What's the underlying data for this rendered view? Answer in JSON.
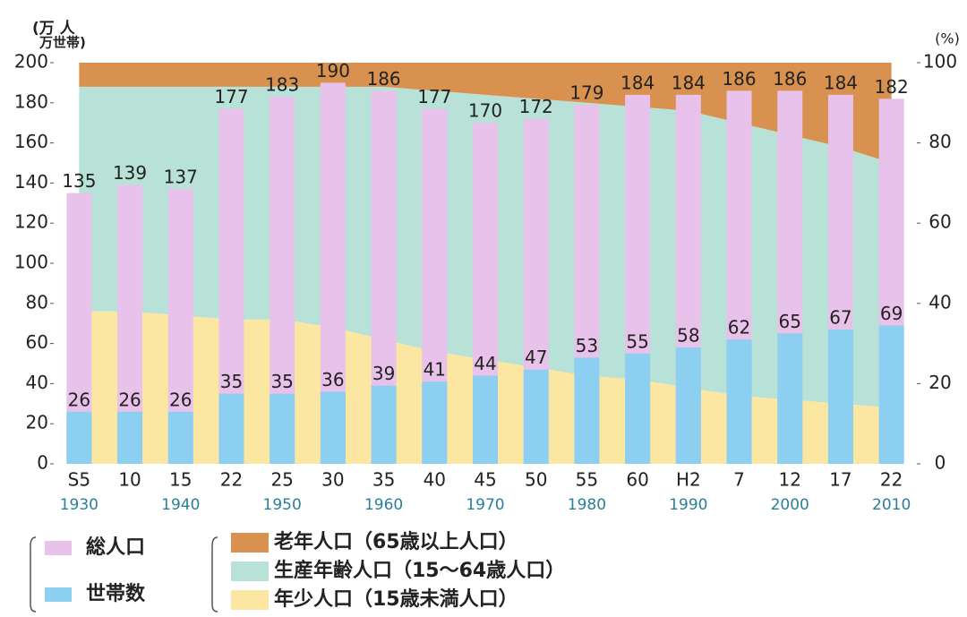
{
  "chart_data": {
    "type": "bar",
    "y_label_lines": [
      "(万 人",
      "万世帯)"
    ],
    "y2_label": "(%)",
    "categories": [
      "S5",
      "10",
      "15",
      "22",
      "25",
      "30",
      "35",
      "40",
      "45",
      "50",
      "55",
      "60",
      "H2",
      "7",
      "12",
      "17",
      "22"
    ],
    "years": [
      "1930",
      null,
      "1940",
      null,
      "1950",
      null,
      "1960",
      null,
      "1970",
      null,
      "1980",
      null,
      "1990",
      null,
      "2000",
      null,
      "2010"
    ],
    "series": [
      {
        "name": "総人口",
        "color": "#e8c2ea",
        "values": [
          135,
          139,
          137,
          177,
          183,
          190,
          186,
          177,
          170,
          172,
          179,
          184,
          184,
          186,
          186,
          184,
          182
        ]
      },
      {
        "name": "世帯数",
        "color": "#8ccff0",
        "values": [
          26,
          26,
          26,
          35,
          35,
          36,
          39,
          41,
          44,
          47,
          53,
          55,
          58,
          62,
          65,
          67,
          69
        ]
      }
    ],
    "area_series": [
      {
        "name": "年少人口（15歳未満人口）",
        "color": "#fbe7a1",
        "axis": "y2",
        "values": [
          38,
          38,
          37,
          36,
          36,
          34,
          31,
          28,
          26,
          24,
          22,
          21,
          19,
          17,
          16,
          15,
          14
        ]
      },
      {
        "name": "生産年齢人口（15～64歳人口）",
        "color": "#b8e1d7",
        "axis": "y2",
        "values": [
          56,
          56,
          57,
          58,
          58,
          60,
          63,
          65,
          66,
          67,
          68,
          68,
          69,
          68,
          66,
          64,
          61
        ]
      },
      {
        "name": "老年人口（65歳以上人口）",
        "color": "#d8914f",
        "axis": "y2",
        "values": [
          6,
          6,
          6,
          6,
          6,
          6,
          6,
          7,
          8,
          9,
          10,
          11,
          12,
          15,
          18,
          21,
          25
        ]
      }
    ],
    "ylim": [
      0,
      200
    ],
    "yticks": [
      0,
      20,
      40,
      60,
      80,
      100,
      120,
      140,
      160,
      180,
      200
    ],
    "y2lim": [
      0,
      100
    ],
    "y2ticks": [
      0,
      20,
      40,
      60,
      80,
      100
    ]
  }
}
